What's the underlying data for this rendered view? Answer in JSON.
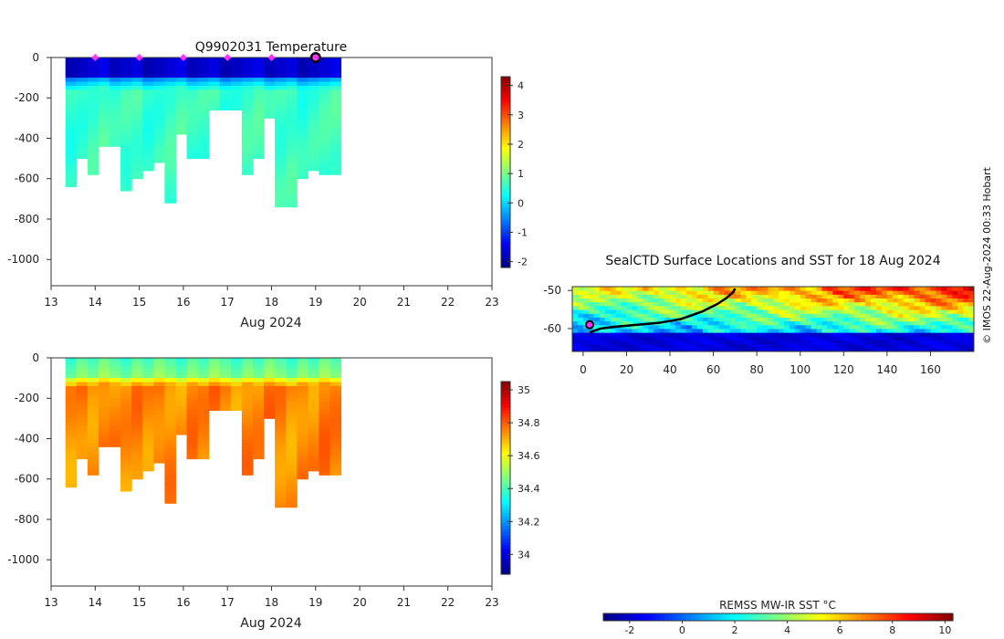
{
  "credit": "© IMOS 22-Aug-2024 00:33 Hobart",
  "chart_data": [
    {
      "type": "heatmap",
      "id": "temperature",
      "title": "Q9902031  Temperature",
      "xlabel": "Aug 2024",
      "ylabel": "",
      "xlim": [
        13,
        23
      ],
      "ylim": [
        -1130,
        0
      ],
      "xticks": [
        13,
        14,
        15,
        16,
        17,
        18,
        19,
        20,
        21,
        22,
        23
      ],
      "yticks": [
        0,
        -200,
        -400,
        -600,
        -800,
        -1000
      ],
      "ytick_labels": [
        "0",
        "-200",
        "-400",
        "-600",
        "-800",
        "-1000"
      ],
      "colorbar": {
        "range": [
          -2.2,
          4.3
        ],
        "ticks": [
          4,
          3,
          2,
          1,
          0,
          -1,
          -2
        ],
        "tick_labels": [
          "4",
          "3",
          "2",
          "1",
          "0",
          "-1",
          "-2"
        ]
      },
      "profile_days": [
        13.45,
        13.7,
        13.95,
        14.2,
        14.45,
        14.7,
        14.95,
        15.2,
        15.45,
        15.7,
        15.95,
        16.2,
        16.45,
        16.7,
        16.95,
        17.2,
        17.45,
        17.7,
        17.95,
        18.2,
        18.45,
        18.7,
        18.95,
        19.2,
        19.45
      ],
      "profile_max_depth": [
        640,
        500,
        580,
        440,
        430,
        660,
        600,
        560,
        510,
        710,
        380,
        500,
        500,
        260,
        260,
        260,
        580,
        500,
        300,
        730,
        730,
        600,
        550,
        580,
        580
      ],
      "surface_markers": [
        14.0,
        15.0,
        16.0,
        17.0,
        18.0
      ],
      "latest_marker": 19.0,
      "mixed_layer_temp": -1.7,
      "deep_temp": 0.6
    },
    {
      "type": "heatmap",
      "id": "salinity",
      "title": "",
      "xlabel": "Aug 2024",
      "ylabel": "",
      "xlim": [
        13,
        23
      ],
      "ylim": [
        -1130,
        0
      ],
      "xticks": [
        13,
        14,
        15,
        16,
        17,
        18,
        19,
        20,
        21,
        22,
        23
      ],
      "yticks": [
        0,
        -200,
        -400,
        -600,
        -800,
        -1000
      ],
      "ytick_labels": [
        "0",
        "-200",
        "-400",
        "-600",
        "-800",
        "-1000"
      ],
      "colorbar": {
        "range": [
          33.88,
          35.05
        ],
        "ticks": [
          35,
          34.8,
          34.6,
          34.4,
          34.2,
          34
        ],
        "tick_labels": [
          "35",
          "34.8",
          "34.6",
          "34.4",
          "34.2",
          "34"
        ]
      },
      "surface_sal": 34.4,
      "deep_sal": 34.75
    },
    {
      "type": "heatmap",
      "id": "sst-map",
      "title": "SealCTD Surface Locations and SST for 18 Aug 2024",
      "xlabel": "",
      "xlim": [
        -5,
        180
      ],
      "ylim": [
        -66,
        -49
      ],
      "xticks": [
        0,
        20,
        40,
        60,
        80,
        100,
        120,
        140,
        160
      ],
      "yticks": [
        -50,
        -60
      ],
      "ytick_labels": [
        "-50",
        "-60"
      ],
      "track_lon": [
        3,
        8,
        15,
        25,
        35,
        45,
        55,
        62,
        66,
        69,
        70
      ],
      "track_lat": [
        -61,
        -60,
        -59.5,
        -59,
        -58.5,
        -57.5,
        -55.5,
        -53.5,
        -52,
        -50.5,
        -49.5
      ],
      "current_position": [
        3,
        -59
      ],
      "colorbar": {
        "label": "REMSS MW-IR SST °C",
        "range": [
          -3,
          10.3
        ],
        "ticks": [
          -2,
          0,
          2,
          4,
          6,
          8,
          10
        ],
        "tick_labels": [
          "-2",
          "0",
          "2",
          "4",
          "6",
          "8",
          "10"
        ]
      }
    }
  ]
}
